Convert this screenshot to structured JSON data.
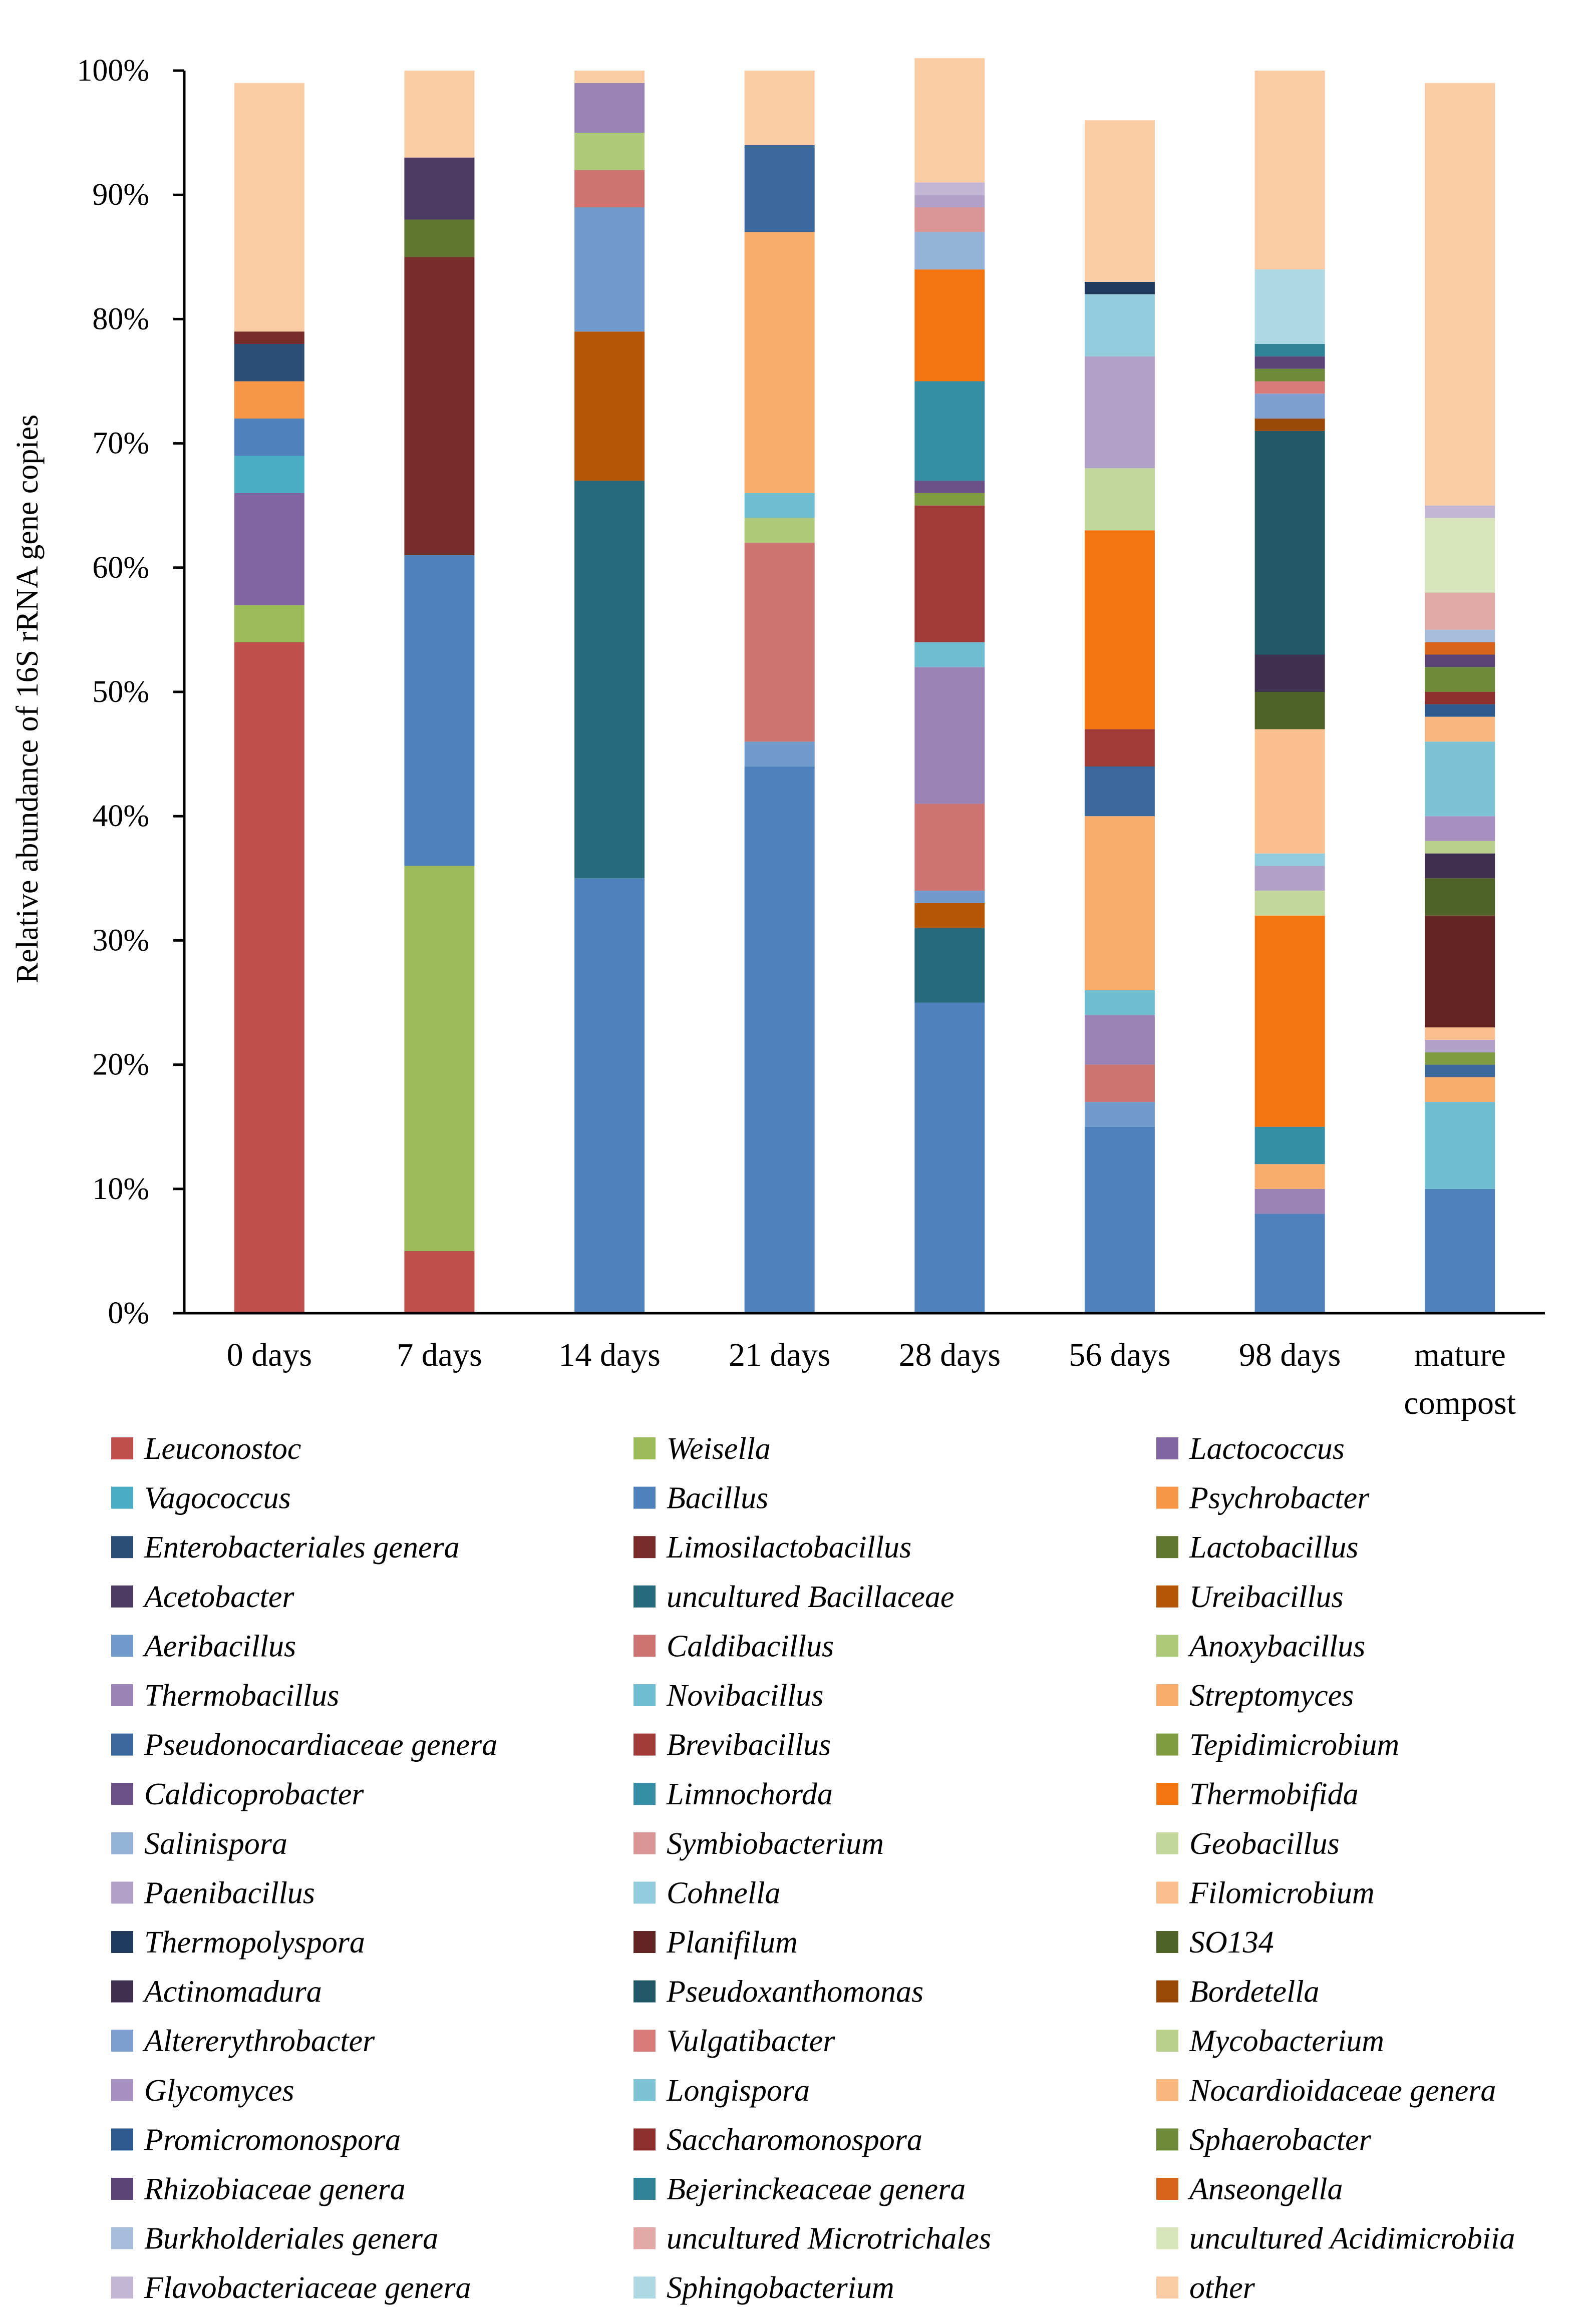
{
  "chart_data": {
    "type": "stacked-bar",
    "ylabel": "Relative abundance of 16S rRNA gene copies",
    "xlabel": "",
    "ylim": [
      0,
      100
    ],
    "yticks": [
      "0%",
      "10%",
      "20%",
      "30%",
      "40%",
      "50%",
      "60%",
      "70%",
      "80%",
      "90%",
      "100%"
    ],
    "categories": [
      "0 days",
      "7 days",
      "14 days",
      "21 days",
      "28 days",
      "56 days",
      "98 days",
      "mature compost"
    ],
    "legend_position": "bottom",
    "series": [
      {
        "name": "Leuconostoc",
        "color": "#C0504D",
        "values": [
          54,
          5,
          0,
          0,
          0,
          0,
          0,
          0
        ]
      },
      {
        "name": "Weisella",
        "color": "#9BBB59",
        "values": [
          3,
          31,
          0,
          0,
          0,
          0,
          0,
          0
        ]
      },
      {
        "name": "Lactococcus",
        "color": "#8064A2",
        "values": [
          9,
          0,
          0,
          0,
          0,
          0,
          0,
          0
        ]
      },
      {
        "name": "Vagococcus",
        "color": "#4BACC6",
        "values": [
          3,
          0,
          0,
          0,
          0,
          0,
          0,
          0
        ]
      },
      {
        "name": "Bacillus",
        "color": "#4F81BD",
        "values": [
          3,
          25,
          35,
          44,
          25,
          15,
          8,
          10
        ]
      },
      {
        "name": "Psychrobacter",
        "color": "#F79646",
        "values": [
          3,
          0,
          0,
          0,
          0,
          0,
          0,
          0
        ]
      },
      {
        "name": "Enterobacteriales genera",
        "color": "#2C4D75",
        "values": [
          3,
          0,
          0,
          0,
          0,
          0,
          0,
          0
        ]
      },
      {
        "name": "Limosilactobacillus",
        "color": "#772C2A",
        "values": [
          1,
          24,
          0,
          0,
          0,
          0,
          0,
          0
        ]
      },
      {
        "name": "Lactobacillus",
        "color": "#5F7530",
        "values": [
          0,
          3,
          0,
          0,
          0,
          0,
          0,
          0
        ]
      },
      {
        "name": "Acetobacter",
        "color": "#4D3B62",
        "values": [
          0,
          5,
          0,
          0,
          0,
          0,
          0,
          0
        ]
      },
      {
        "name": "uncultured Bacillaceae",
        "color": "#276A7C",
        "values": [
          0,
          0,
          32,
          0,
          6,
          0,
          0,
          0
        ]
      },
      {
        "name": "Ureibacillus",
        "color": "#B65708",
        "values": [
          0,
          0,
          12,
          0,
          2,
          0,
          0,
          0
        ]
      },
      {
        "name": "Aeribacillus",
        "color": "#729ACA",
        "values": [
          0,
          0,
          10,
          2,
          1,
          2,
          0,
          0
        ]
      },
      {
        "name": "Caldibacillus",
        "color": "#CD7371",
        "values": [
          0,
          0,
          3,
          16,
          7,
          3,
          0,
          0
        ]
      },
      {
        "name": "Anoxybacillus",
        "color": "#AFC97A",
        "values": [
          0,
          0,
          3,
          2,
          0,
          0,
          0,
          0
        ]
      },
      {
        "name": "Thermobacillus",
        "color": "#9983B5",
        "values": [
          0,
          0,
          4,
          0,
          11,
          4,
          2,
          0
        ]
      },
      {
        "name": "Novibacillus",
        "color": "#6FBDD1",
        "values": [
          0,
          0,
          0,
          2,
          2,
          2,
          0,
          7
        ]
      },
      {
        "name": "Streptomyces",
        "color": "#F9AB6B",
        "values": [
          0,
          0,
          0,
          21,
          0,
          14,
          2,
          2
        ]
      },
      {
        "name": "Pseudonocardiaceae genera",
        "color": "#3A679C",
        "values": [
          0,
          0,
          0,
          7,
          0,
          4,
          0,
          1
        ]
      },
      {
        "name": "Brevibacillus",
        "color": "#9F3B38",
        "values": [
          0,
          0,
          0,
          0,
          11,
          3,
          0,
          0
        ]
      },
      {
        "name": "Tepidimicrobium",
        "color": "#7F9C41",
        "values": [
          0,
          0,
          0,
          0,
          1,
          0,
          0,
          1
        ]
      },
      {
        "name": "Caldicoprobacter",
        "color": "#6A5084",
        "values": [
          0,
          0,
          0,
          0,
          1,
          0,
          0,
          0
        ]
      },
      {
        "name": "Limnochorda",
        "color": "#358EA6",
        "values": [
          0,
          0,
          0,
          0,
          8,
          0,
          3,
          0
        ]
      },
      {
        "name": "Thermobifida",
        "color": "#F2750F",
        "values": [
          0,
          0,
          0,
          0,
          9,
          16,
          17,
          0
        ]
      },
      {
        "name": "Salinispora",
        "color": "#95B3D7",
        "values": [
          0,
          0,
          0,
          0,
          3,
          0,
          0,
          0
        ]
      },
      {
        "name": "Symbiobacterium",
        "color": "#D99694",
        "values": [
          0,
          0,
          0,
          0,
          2,
          0,
          0,
          0
        ]
      },
      {
        "name": "Geobacillus",
        "color": "#C3D69B",
        "values": [
          0,
          0,
          0,
          0,
          0,
          5,
          2,
          0
        ]
      },
      {
        "name": "Paenibacillus",
        "color": "#B2A1C7",
        "values": [
          0,
          0,
          0,
          0,
          1,
          9,
          2,
          1
        ]
      },
      {
        "name": "Cohnella",
        "color": "#93CDDD",
        "values": [
          0,
          0,
          0,
          0,
          0,
          5,
          1,
          0
        ]
      },
      {
        "name": "Filomicrobium",
        "color": "#FAC090",
        "values": [
          0,
          0,
          0,
          0,
          0,
          0,
          10,
          1
        ]
      },
      {
        "name": "Thermopolyspora",
        "color": "#1F3A5C",
        "values": [
          0,
          0,
          0,
          0,
          0,
          1,
          0,
          0
        ]
      },
      {
        "name": "Planifilum",
        "color": "#632523",
        "values": [
          0,
          0,
          0,
          0,
          0,
          0,
          0,
          9
        ]
      },
      {
        "name": "SO134",
        "color": "#4F6228",
        "values": [
          0,
          0,
          0,
          0,
          0,
          0,
          3,
          3
        ]
      },
      {
        "name": "Actinomadura",
        "color": "#403151",
        "values": [
          0,
          0,
          0,
          0,
          0,
          0,
          3,
          2
        ]
      },
      {
        "name": "Pseudoxanthomonas",
        "color": "#215968",
        "values": [
          0,
          0,
          0,
          0,
          0,
          0,
          18,
          0
        ]
      },
      {
        "name": "Bordetella",
        "color": "#984807",
        "values": [
          0,
          0,
          0,
          0,
          0,
          0,
          1,
          0
        ]
      },
      {
        "name": "Altererythrobacter",
        "color": "#7E9FD0",
        "values": [
          0,
          0,
          0,
          0,
          0,
          0,
          2,
          0
        ]
      },
      {
        "name": "Vulgatibacter",
        "color": "#D67B79",
        "values": [
          0,
          0,
          0,
          0,
          0,
          0,
          1,
          0
        ]
      },
      {
        "name": "Mycobacterium",
        "color": "#B9CF8C",
        "values": [
          0,
          0,
          0,
          0,
          0,
          0,
          0,
          1
        ]
      },
      {
        "name": "Glycomyces",
        "color": "#A590C0",
        "values": [
          0,
          0,
          0,
          0,
          0,
          0,
          0,
          2
        ]
      },
      {
        "name": "Longispora",
        "color": "#7DC3D4",
        "values": [
          0,
          0,
          0,
          0,
          0,
          0,
          0,
          6
        ]
      },
      {
        "name": "Nocardioidaceae genera",
        "color": "#FAB880",
        "values": [
          0,
          0,
          0,
          0,
          0,
          0,
          0,
          2
        ]
      },
      {
        "name": "Promicromonospora",
        "color": "#2E5B8F",
        "values": [
          0,
          0,
          0,
          0,
          0,
          0,
          0,
          1
        ]
      },
      {
        "name": "Saccharomonospora",
        "color": "#8E302E",
        "values": [
          0,
          0,
          0,
          0,
          0,
          0,
          0,
          1
        ]
      },
      {
        "name": "Sphaerobacter",
        "color": "#6E8B3A",
        "values": [
          0,
          0,
          0,
          0,
          0,
          0,
          1,
          2
        ]
      },
      {
        "name": "Rhizobiaceae genera",
        "color": "#5B4577",
        "values": [
          0,
          0,
          0,
          0,
          0,
          0,
          1,
          1
        ]
      },
      {
        "name": "Bejerinckeaceae genera",
        "color": "#2F8396",
        "values": [
          0,
          0,
          0,
          0,
          0,
          0,
          1,
          0
        ]
      },
      {
        "name": "Anseongella",
        "color": "#D9651A",
        "values": [
          0,
          0,
          0,
          0,
          0,
          0,
          0,
          1
        ]
      },
      {
        "name": "Burkholderiales genera",
        "color": "#A6BDDB",
        "values": [
          0,
          0,
          0,
          0,
          0,
          0,
          0,
          1
        ]
      },
      {
        "name": "uncultured Microtrichales",
        "color": "#E2A9A7",
        "values": [
          0,
          0,
          0,
          0,
          0,
          0,
          0,
          3
        ]
      },
      {
        "name": "uncultured Acidimicrobiia",
        "color": "#D7E4BC",
        "values": [
          0,
          0,
          0,
          0,
          0,
          0,
          0,
          6
        ]
      },
      {
        "name": "Flavobacteriaceae genera",
        "color": "#C4B7D6",
        "values": [
          0,
          0,
          0,
          0,
          1,
          0,
          0,
          1
        ]
      },
      {
        "name": "Sphingobacterium",
        "color": "#ADD8E4",
        "values": [
          0,
          0,
          0,
          0,
          0,
          0,
          6,
          0
        ]
      },
      {
        "name": "other",
        "color": "#FBCBA3",
        "values": [
          20,
          7,
          1,
          6,
          10,
          13,
          16,
          34
        ]
      }
    ]
  }
}
